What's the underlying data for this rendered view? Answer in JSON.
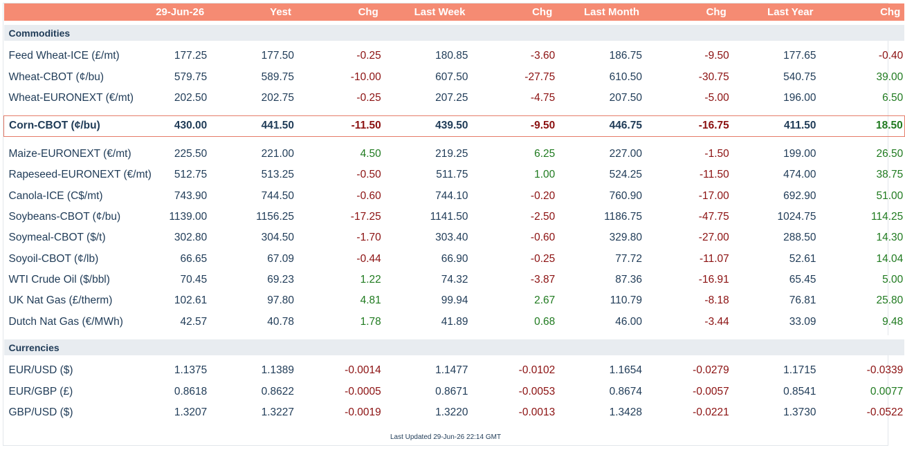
{
  "header": [
    "29-Jun-26",
    "Yest",
    "Chg",
    "Last Week",
    "Chg",
    "Last Month",
    "Chg",
    "Last Year",
    "Chg"
  ],
  "sections": [
    {
      "title": "Commodities",
      "rows": [
        {
          "name": "Feed Wheat-ICE (£/mt)",
          "v": [
            "177.25",
            "177.50",
            "-0.25",
            "180.85",
            "-3.60",
            "186.75",
            "-9.50",
            "177.65",
            "-0.40"
          ]
        },
        {
          "name": "Wheat-CBOT (¢/bu)",
          "v": [
            "579.75",
            "589.75",
            "-10.00",
            "607.50",
            "-27.75",
            "610.50",
            "-30.75",
            "540.75",
            "39.00"
          ]
        },
        {
          "name": "Wheat-EURONEXT (€/mt)",
          "v": [
            "202.50",
            "202.75",
            "-0.25",
            "207.25",
            "-4.75",
            "207.50",
            "-5.00",
            "196.00",
            "6.50"
          ]
        },
        {
          "name": "Corn-CBOT (¢/bu)",
          "highlight": true,
          "v": [
            "430.00",
            "441.50",
            "-11.50",
            "439.50",
            "-9.50",
            "446.75",
            "-16.75",
            "411.50",
            "18.50"
          ]
        },
        {
          "name": "Maize-EURONEXT (€/mt)",
          "v": [
            "225.50",
            "221.00",
            "4.50",
            "219.25",
            "6.25",
            "227.00",
            "-1.50",
            "199.00",
            "26.50"
          ]
        },
        {
          "name": "Rapeseed-EURONEXT (€/mt)",
          "v": [
            "512.75",
            "513.25",
            "-0.50",
            "511.75",
            "1.00",
            "524.25",
            "-11.50",
            "474.00",
            "38.75"
          ]
        },
        {
          "name": "Canola-ICE (C$/mt)",
          "v": [
            "743.90",
            "744.50",
            "-0.60",
            "744.10",
            "-0.20",
            "760.90",
            "-17.00",
            "692.90",
            "51.00"
          ]
        },
        {
          "name": "Soybeans-CBOT (¢/bu)",
          "v": [
            "1139.00",
            "1156.25",
            "-17.25",
            "1141.50",
            "-2.50",
            "1186.75",
            "-47.75",
            "1024.75",
            "114.25"
          ]
        },
        {
          "name": "Soymeal-CBOT ($/t)",
          "v": [
            "302.80",
            "304.50",
            "-1.70",
            "303.40",
            "-0.60",
            "329.80",
            "-27.00",
            "288.50",
            "14.30"
          ]
        },
        {
          "name": "Soyoil-CBOT (¢/lb)",
          "v": [
            "66.65",
            "67.09",
            "-0.44",
            "66.90",
            "-0.25",
            "77.72",
            "-11.07",
            "52.61",
            "14.04"
          ]
        },
        {
          "name": "WTI Crude Oil ($/bbl)",
          "v": [
            "70.45",
            "69.23",
            "1.22",
            "74.32",
            "-3.87",
            "87.36",
            "-16.91",
            "65.45",
            "5.00"
          ]
        },
        {
          "name": "UK Nat Gas (£/therm)",
          "v": [
            "102.61",
            "97.80",
            "4.81",
            "99.94",
            "2.67",
            "110.79",
            "-8.18",
            "76.81",
            "25.80"
          ]
        },
        {
          "name": "Dutch Nat Gas (€/MWh)",
          "v": [
            "42.57",
            "40.78",
            "1.78",
            "41.89",
            "0.68",
            "46.00",
            "-3.44",
            "33.09",
            "9.48"
          ]
        }
      ]
    },
    {
      "title": "Currencies",
      "rows": [
        {
          "name": "EUR/USD ($)",
          "v": [
            "1.1375",
            "1.1389",
            "-0.0014",
            "1.1477",
            "-0.0102",
            "1.1654",
            "-0.0279",
            "1.1715",
            "-0.0339"
          ]
        },
        {
          "name": "EUR/GBP (£)",
          "v": [
            "0.8618",
            "0.8622",
            "-0.0005",
            "0.8671",
            "-0.0053",
            "0.8674",
            "-0.0057",
            "0.8541",
            "0.0077"
          ]
        },
        {
          "name": "GBP/USD ($)",
          "v": [
            "1.3207",
            "1.3227",
            "-0.0019",
            "1.3220",
            "-0.0013",
            "1.3428",
            "-0.0221",
            "1.3730",
            "-0.0522"
          ]
        }
      ]
    }
  ],
  "footer": "Last Updated 29-Jun-26 22:14 GMT",
  "colors": {
    "header_bg": "#f58b73",
    "negative": "#8b1010",
    "positive": "#1f7a1f",
    "section_bg": "#e8ecf0"
  }
}
